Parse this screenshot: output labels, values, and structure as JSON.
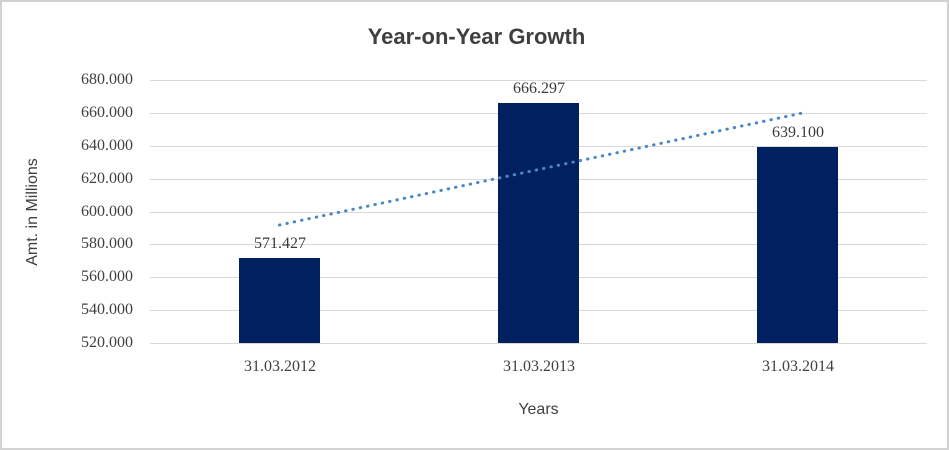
{
  "chart_data": {
    "type": "bar",
    "title": "Year-on-Year Growth",
    "xlabel": "Years",
    "ylabel": "Amt. in Millions",
    "categories": [
      "31.03.2012",
      "31.03.2013",
      "31.03.2014"
    ],
    "values": [
      571.427,
      666.297,
      639.1
    ],
    "value_labels": [
      "571.427",
      "666.297",
      "639.100"
    ],
    "ylim": [
      520,
      680
    ],
    "y_tick_step": 20,
    "y_tick_labels": [
      "680.000",
      "660.000",
      "640.000",
      "620.000",
      "600.000",
      "580.000",
      "560.000",
      "540.000",
      "520.000"
    ],
    "grid": "horizontal",
    "legend": "none",
    "trendline": "linear-dotted",
    "colors": {
      "bar": "#01205f",
      "trendline": "#4a86c8",
      "gridline": "#d9d9d9",
      "title_text": "#3f3f3f",
      "axis_text": "#404040",
      "frame_border": "#d2d2d2",
      "background": "#ffffff"
    }
  }
}
